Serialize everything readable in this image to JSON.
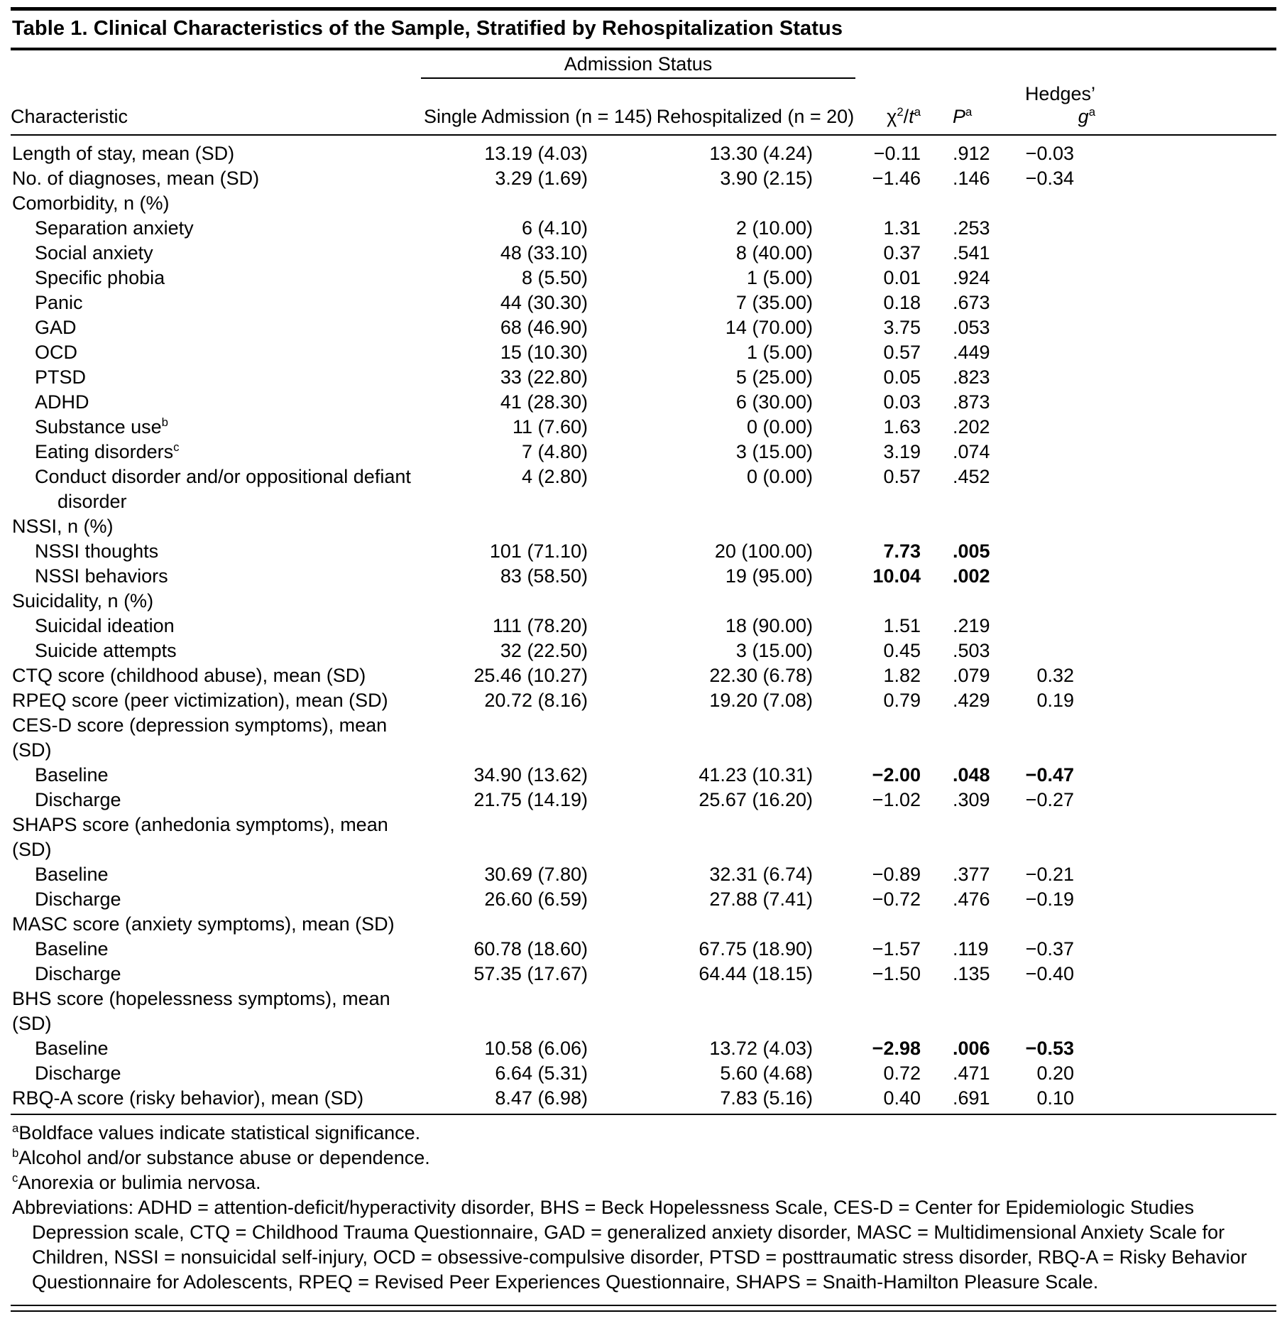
{
  "title": "Table 1. Clinical Characteristics of the Sample, Stratified by Rehospitalization Status",
  "table": {
    "spanner_label": "Admission Status",
    "columns": {
      "characteristic": "Characteristic",
      "single": "Single Admission (n = 145)",
      "rehospitalized": "Rehospitalized (n = 20)",
      "stat": {
        "chi": "χ",
        "sup2": "2",
        "slash": "/",
        "t": "t",
        "supa": "a"
      },
      "p": {
        "base": "P",
        "sup": "a"
      },
      "g": {
        "base": "Hedges’ ",
        "ital": "g",
        "sup": "a"
      }
    },
    "rows": [
      {
        "label": "Length of stay, mean (SD)",
        "indent": 0,
        "single": "13.19 (4.03)",
        "rehosp": "13.30 (4.24)",
        "stat": "−0.11",
        "p": ".912",
        "g": "−0.03"
      },
      {
        "label": "No. of diagnoses, mean (SD)",
        "indent": 0,
        "single": "3.29 (1.69)",
        "rehosp": "3.90 (2.15)",
        "stat": "−1.46",
        "p": ".146",
        "g": "−0.34"
      },
      {
        "label": "Comorbidity, n (%)",
        "indent": 0
      },
      {
        "label": "Separation anxiety",
        "indent": 1,
        "single": "6 (4.10)",
        "rehosp": "2 (10.00)",
        "stat": "1.31",
        "p": ".253"
      },
      {
        "label": "Social anxiety",
        "indent": 1,
        "single": "48 (33.10)",
        "rehosp": "8 (40.00)",
        "stat": "0.37",
        "p": ".541"
      },
      {
        "label": "Specific phobia",
        "indent": 1,
        "single": "8 (5.50)",
        "rehosp": "1 (5.00)",
        "stat": "0.01",
        "p": ".924"
      },
      {
        "label": "Panic",
        "indent": 1,
        "single": "44 (30.30)",
        "rehosp": "7 (35.00)",
        "stat": "0.18",
        "p": ".673"
      },
      {
        "label": "GAD",
        "indent": 1,
        "single": "68 (46.90)",
        "rehosp": "14 (70.00)",
        "stat": "3.75",
        "p": ".053"
      },
      {
        "label": "OCD",
        "indent": 1,
        "single": "15 (10.30)",
        "rehosp": "1 (5.00)",
        "stat": "0.57",
        "p": ".449"
      },
      {
        "label": "PTSD",
        "indent": 1,
        "single": "33 (22.80)",
        "rehosp": "5 (25.00)",
        "stat": "0.05",
        "p": ".823"
      },
      {
        "label": "ADHD",
        "indent": 1,
        "single": "41 (28.30)",
        "rehosp": "6 (30.00)",
        "stat": "0.03",
        "p": ".873"
      },
      {
        "label": "Substance use",
        "sup": "b",
        "indent": 1,
        "single": "11 (7.60)",
        "rehosp": "0 (0.00)",
        "stat": "1.63",
        "p": ".202"
      },
      {
        "label": "Eating disorders",
        "sup": "c",
        "indent": 1,
        "single": "7 (4.80)",
        "rehosp": "3 (15.00)",
        "stat": "3.19",
        "p": ".074"
      },
      {
        "label": "Conduct disorder and/or oppositional defiant\ndisorder",
        "indent": 1,
        "single": "4 (2.80)",
        "rehosp": "0 (0.00)",
        "stat": "0.57",
        "p": ".452"
      },
      {
        "label": "NSSI, n (%)",
        "indent": 0
      },
      {
        "label": "NSSI thoughts",
        "indent": 1,
        "single": "101 (71.10)",
        "rehosp": "20 (100.00)",
        "stat": "7.73",
        "p": ".005",
        "bold": true
      },
      {
        "label": "NSSI behaviors",
        "indent": 1,
        "single": "83 (58.50)",
        "rehosp": "19 (95.00)",
        "stat": "10.04",
        "p": ".002",
        "bold": true
      },
      {
        "label": "Suicidality, n (%)",
        "indent": 0
      },
      {
        "label": "Suicidal ideation",
        "indent": 1,
        "single": "111 (78.20)",
        "rehosp": "18 (90.00)",
        "stat": "1.51",
        "p": ".219"
      },
      {
        "label": "Suicide attempts",
        "indent": 1,
        "single": "32 (22.50)",
        "rehosp": "3 (15.00)",
        "stat": "0.45",
        "p": ".503"
      },
      {
        "label": "CTQ score (childhood abuse), mean (SD)",
        "indent": 0,
        "single": "25.46 (10.27)",
        "rehosp": "22.30 (6.78)",
        "stat": "1.82",
        "p": ".079",
        "g": "0.32"
      },
      {
        "label": "RPEQ score (peer victimization), mean (SD)",
        "indent": 0,
        "single": "20.72 (8.16)",
        "rehosp": "19.20 (7.08)",
        "stat": "0.79",
        "p": ".429",
        "g": "0.19"
      },
      {
        "label": "CES-D score (depression symptoms), mean (SD)",
        "indent": 0
      },
      {
        "label": "Baseline",
        "indent": 1,
        "single": "34.90 (13.62)",
        "rehosp": "41.23 (10.31)",
        "stat": "−2.00",
        "p": ".048",
        "g": "−0.47",
        "bold": true
      },
      {
        "label": "Discharge",
        "indent": 1,
        "single": "21.75 (14.19)",
        "rehosp": "25.67 (16.20)",
        "stat": "−1.02",
        "p": ".309",
        "g": "−0.27"
      },
      {
        "label": "SHAPS score (anhedonia symptoms), mean (SD)",
        "indent": 0
      },
      {
        "label": "Baseline",
        "indent": 1,
        "single": "30.69 (7.80)",
        "rehosp": "32.31 (6.74)",
        "stat": "−0.89",
        "p": ".377",
        "g": "−0.21"
      },
      {
        "label": "Discharge",
        "indent": 1,
        "single": "26.60 (6.59)",
        "rehosp": "27.88 (7.41)",
        "stat": "−0.72",
        "p": ".476",
        "g": "−0.19"
      },
      {
        "label": "MASC score (anxiety symptoms), mean (SD)",
        "indent": 0
      },
      {
        "label": "Baseline",
        "indent": 1,
        "single": "60.78 (18.60)",
        "rehosp": "67.75 (18.90)",
        "stat": "−1.57",
        "p": ".119",
        "g": "−0.37"
      },
      {
        "label": "Discharge",
        "indent": 1,
        "single": "57.35 (17.67)",
        "rehosp": "64.44 (18.15)",
        "stat": "−1.50",
        "p": ".135",
        "g": "−0.40"
      },
      {
        "label": "BHS score (hopelessness symptoms), mean (SD)",
        "indent": 0
      },
      {
        "label": "Baseline",
        "indent": 1,
        "single": "10.58 (6.06)",
        "rehosp": "13.72 (4.03)",
        "stat": "−2.98",
        "p": ".006",
        "g": "−0.53",
        "bold": true
      },
      {
        "label": "Discharge",
        "indent": 1,
        "single": "6.64 (5.31)",
        "rehosp": "5.60 (4.68)",
        "stat": "0.72",
        "p": ".471",
        "g": "0.20"
      },
      {
        "label": "RBQ-A score (risky behavior), mean (SD)",
        "indent": 0,
        "single": "8.47 (6.98)",
        "rehosp": "7.83 (5.16)",
        "stat": "0.40",
        "p": ".691",
        "g": "0.10"
      }
    ]
  },
  "footnotes": [
    {
      "sup": "a",
      "text": "Boldface values indicate statistical significance."
    },
    {
      "sup": "b",
      "text": "Alcohol and/or substance abuse or dependence."
    },
    {
      "sup": "c",
      "text": "Anorexia or bulimia nervosa."
    },
    {
      "sup": "",
      "text": "Abbreviations: ADHD = attention-deficit/hyperactivity disorder, BHS = Beck Hopelessness Scale, CES-D = Center for Epidemiologic Studies Depression scale, CTQ = Childhood Trauma Questionnaire, GAD = generalized anxiety disorder, MASC = Multidimensional Anxiety Scale for Children, NSSI = nonsuicidal self-injury, OCD = obsessive-compulsive disorder, PTSD = posttraumatic stress disorder, RBQ-A = Risky Behavior Questionnaire for Adolescents, RPEQ = Revised Peer Experiences Questionnaire, SHAPS = Snaith-Hamilton Pleasure Scale."
    }
  ]
}
